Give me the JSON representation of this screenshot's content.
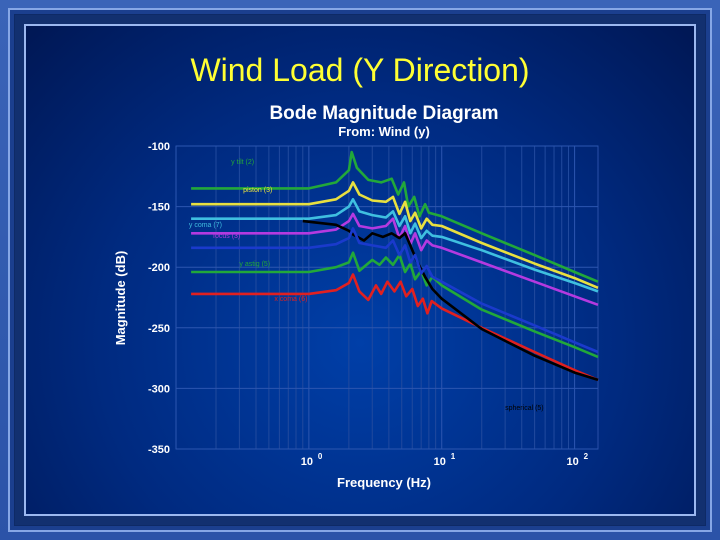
{
  "slide_title": "Wind Load (Y Direction)",
  "chart_data": {
    "type": "line",
    "title": "Bode Magnitude Diagram",
    "subtitle": "From: Wind (y)",
    "xlabel": "Frequency (Hz)",
    "ylabel": "Magnitude (dB)",
    "xscale": "log",
    "xlim": [
      0.1,
      150
    ],
    "ylim": [
      -350,
      -100
    ],
    "xticks": [
      {
        "value": 1,
        "base": "10",
        "exp": "0"
      },
      {
        "value": 10,
        "base": "10",
        "exp": "1"
      },
      {
        "value": 100,
        "base": "10",
        "exp": "2"
      }
    ],
    "yticks": [
      -100,
      -150,
      -200,
      -250,
      -300,
      -350
    ],
    "grid": true,
    "series": [
      {
        "name": "y tilt (2)",
        "color": "#22a83a",
        "label_at": [
          0.26,
          -115
        ],
        "points": [
          [
            0.13,
            -135
          ],
          [
            1.0,
            -135
          ],
          [
            1.6,
            -130
          ],
          [
            2.0,
            -120
          ],
          [
            2.1,
            -105
          ],
          [
            2.3,
            -118
          ],
          [
            2.8,
            -128
          ],
          [
            3.5,
            -130
          ],
          [
            4.2,
            -127
          ],
          [
            4.7,
            -140
          ],
          [
            5.2,
            -130
          ],
          [
            5.6,
            -150
          ],
          [
            6.2,
            -142
          ],
          [
            6.8,
            -158
          ],
          [
            7.5,
            -148
          ],
          [
            8.0,
            -155
          ],
          [
            10,
            -158
          ],
          [
            20,
            -172
          ],
          [
            50,
            -190
          ],
          [
            100,
            -204
          ],
          [
            150,
            -212
          ]
        ]
      },
      {
        "name": "piston (3)",
        "color": "#e8e040",
        "label_at": [
          0.32,
          -138
        ],
        "points": [
          [
            0.13,
            -148
          ],
          [
            1.0,
            -148
          ],
          [
            1.6,
            -144
          ],
          [
            2.0,
            -137
          ],
          [
            2.15,
            -130
          ],
          [
            2.4,
            -140
          ],
          [
            3.0,
            -145
          ],
          [
            3.8,
            -146
          ],
          [
            4.3,
            -142
          ],
          [
            4.8,
            -156
          ],
          [
            5.3,
            -146
          ],
          [
            5.8,
            -162
          ],
          [
            6.3,
            -155
          ],
          [
            7.0,
            -168
          ],
          [
            7.7,
            -160
          ],
          [
            8.5,
            -165
          ],
          [
            10,
            -166
          ],
          [
            20,
            -180
          ],
          [
            50,
            -197
          ],
          [
            100,
            -209
          ],
          [
            150,
            -217
          ]
        ]
      },
      {
        "name": "y coma (7)",
        "color": "#3fbfe0",
        "label_at": [
          0.125,
          -167
        ],
        "points": [
          [
            0.13,
            -160
          ],
          [
            1.0,
            -160
          ],
          [
            1.6,
            -157
          ],
          [
            2.0,
            -150
          ],
          [
            2.15,
            -144
          ],
          [
            2.4,
            -154
          ],
          [
            3.0,
            -157
          ],
          [
            3.8,
            -159
          ],
          [
            4.3,
            -154
          ],
          [
            4.8,
            -166
          ],
          [
            5.3,
            -158
          ],
          [
            5.8,
            -172
          ],
          [
            6.3,
            -164
          ],
          [
            7.0,
            -176
          ],
          [
            7.7,
            -170
          ],
          [
            8.5,
            -174
          ],
          [
            10,
            -175
          ],
          [
            20,
            -186
          ],
          [
            50,
            -202
          ],
          [
            100,
            -213
          ],
          [
            150,
            -220
          ]
        ]
      },
      {
        "name": "focus (3)",
        "color": "#b43ae0",
        "label_at": [
          0.19,
          -176
        ],
        "points": [
          [
            0.13,
            -172
          ],
          [
            1.0,
            -172
          ],
          [
            1.6,
            -169
          ],
          [
            2.0,
            -162
          ],
          [
            2.15,
            -156
          ],
          [
            2.4,
            -166
          ],
          [
            3.0,
            -168
          ],
          [
            3.8,
            -166
          ],
          [
            4.3,
            -160
          ],
          [
            4.8,
            -176
          ],
          [
            5.3,
            -166
          ],
          [
            5.8,
            -181
          ],
          [
            6.3,
            -172
          ],
          [
            7.0,
            -186
          ],
          [
            7.7,
            -178
          ],
          [
            8.5,
            -182
          ],
          [
            10,
            -184
          ],
          [
            20,
            -196
          ],
          [
            50,
            -212
          ],
          [
            100,
            -224
          ],
          [
            150,
            -231
          ]
        ]
      },
      {
        "name": "y astig (5)",
        "color": "#22a83a",
        "label_at": [
          0.3,
          -199
        ],
        "points": [
          [
            0.13,
            -204
          ],
          [
            1.0,
            -204
          ],
          [
            1.6,
            -200
          ],
          [
            2.0,
            -196
          ],
          [
            2.15,
            -188
          ],
          [
            2.4,
            -203
          ],
          [
            3.0,
            -194
          ],
          [
            3.4,
            -198
          ],
          [
            3.8,
            -192
          ],
          [
            4.3,
            -198
          ],
          [
            4.8,
            -190
          ],
          [
            5.3,
            -204
          ],
          [
            5.8,
            -197
          ],
          [
            6.3,
            -210
          ],
          [
            7.0,
            -203
          ],
          [
            7.7,
            -215
          ],
          [
            8.5,
            -208
          ],
          [
            10,
            -215
          ],
          [
            20,
            -235
          ],
          [
            50,
            -253
          ],
          [
            100,
            -266
          ],
          [
            150,
            -274
          ]
        ]
      },
      {
        "name": "x coma (6)",
        "color": "#e02020",
        "label_at": [
          0.55,
          -228
        ],
        "points": [
          [
            0.13,
            -222
          ],
          [
            1.0,
            -222
          ],
          [
            1.6,
            -219
          ],
          [
            2.0,
            -213
          ],
          [
            2.15,
            -206
          ],
          [
            2.4,
            -220
          ],
          [
            2.8,
            -227
          ],
          [
            3.2,
            -215
          ],
          [
            3.5,
            -222
          ],
          [
            3.9,
            -212
          ],
          [
            4.4,
            -220
          ],
          [
            4.9,
            -212
          ],
          [
            5.4,
            -224
          ],
          [
            6.0,
            -218
          ],
          [
            6.6,
            -232
          ],
          [
            7.2,
            -226
          ],
          [
            7.8,
            -238
          ],
          [
            8.4,
            -228
          ],
          [
            10,
            -234
          ],
          [
            20,
            -250
          ],
          [
            50,
            -270
          ],
          [
            100,
            -285
          ],
          [
            150,
            -293
          ]
        ]
      },
      {
        "name": "spherical (5)",
        "color": "#000000",
        "label_at": [
          30,
          -318
        ],
        "points": [
          [
            0.9,
            -162
          ],
          [
            1.6,
            -165
          ],
          [
            2.0,
            -170
          ],
          [
            2.15,
            -173
          ],
          [
            2.6,
            -178
          ],
          [
            3.0,
            -172
          ],
          [
            3.6,
            -175
          ],
          [
            4.2,
            -172
          ],
          [
            4.8,
            -176
          ],
          [
            5.3,
            -172
          ],
          [
            5.8,
            -182
          ],
          [
            6.5,
            -195
          ],
          [
            7.5,
            -208
          ],
          [
            8.5,
            -218
          ],
          [
            10,
            -226
          ],
          [
            20,
            -251
          ],
          [
            50,
            -273
          ],
          [
            100,
            -287
          ],
          [
            150,
            -293
          ]
        ]
      },
      {
        "name": "",
        "color": "#1a3acc",
        "label_at": null,
        "points": [
          [
            0.13,
            -184
          ],
          [
            1.0,
            -184
          ],
          [
            1.6,
            -181
          ],
          [
            2.0,
            -176
          ],
          [
            2.15,
            -168
          ],
          [
            2.4,
            -180
          ],
          [
            3.0,
            -182
          ],
          [
            3.8,
            -184
          ],
          [
            4.3,
            -178
          ],
          [
            4.8,
            -190
          ],
          [
            5.3,
            -182
          ],
          [
            5.8,
            -196
          ],
          [
            6.3,
            -190
          ],
          [
            7.0,
            -205
          ],
          [
            7.7,
            -199
          ],
          [
            8.5,
            -208
          ],
          [
            10,
            -212
          ],
          [
            20,
            -230
          ],
          [
            50,
            -248
          ],
          [
            100,
            -262
          ],
          [
            150,
            -270
          ]
        ]
      }
    ]
  }
}
